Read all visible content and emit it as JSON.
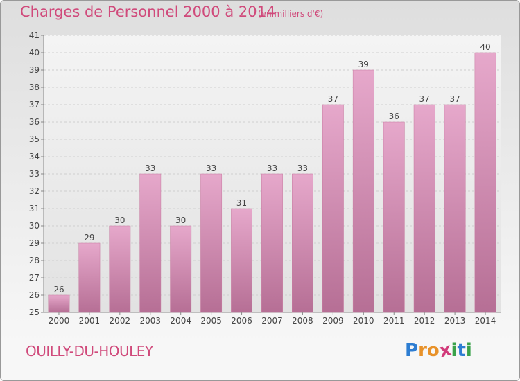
{
  "header": {
    "title": "Charges de Personnel 2000 à 2014",
    "subtitle": "(en milliers d'€)"
  },
  "footer": {
    "commune": "OUILLY-DU-HOULEY",
    "logo": [
      "P",
      "r",
      "o",
      "x",
      "i",
      "t",
      "i"
    ],
    "logo_colors": [
      "#2d7dd2",
      "#e8922a",
      "#e8922a",
      "#d13a7a",
      "#3aa24a",
      "#2d7dd2",
      "#3aa24a"
    ]
  },
  "chart_data": {
    "type": "bar",
    "categories": [
      "2000",
      "2001",
      "2002",
      "2003",
      "2004",
      "2005",
      "2006",
      "2007",
      "2008",
      "2009",
      "2010",
      "2011",
      "2012",
      "2013",
      "2014"
    ],
    "values": [
      26,
      29,
      30,
      33,
      30,
      33,
      31,
      33,
      33,
      37,
      39,
      36,
      37,
      37,
      40
    ],
    "ylim": [
      25,
      41
    ],
    "yticks": [
      25,
      26,
      27,
      28,
      29,
      30,
      31,
      32,
      33,
      34,
      35,
      36,
      37,
      38,
      39,
      40,
      41
    ],
    "grid": true,
    "bar_color": "#d78cb4"
  }
}
